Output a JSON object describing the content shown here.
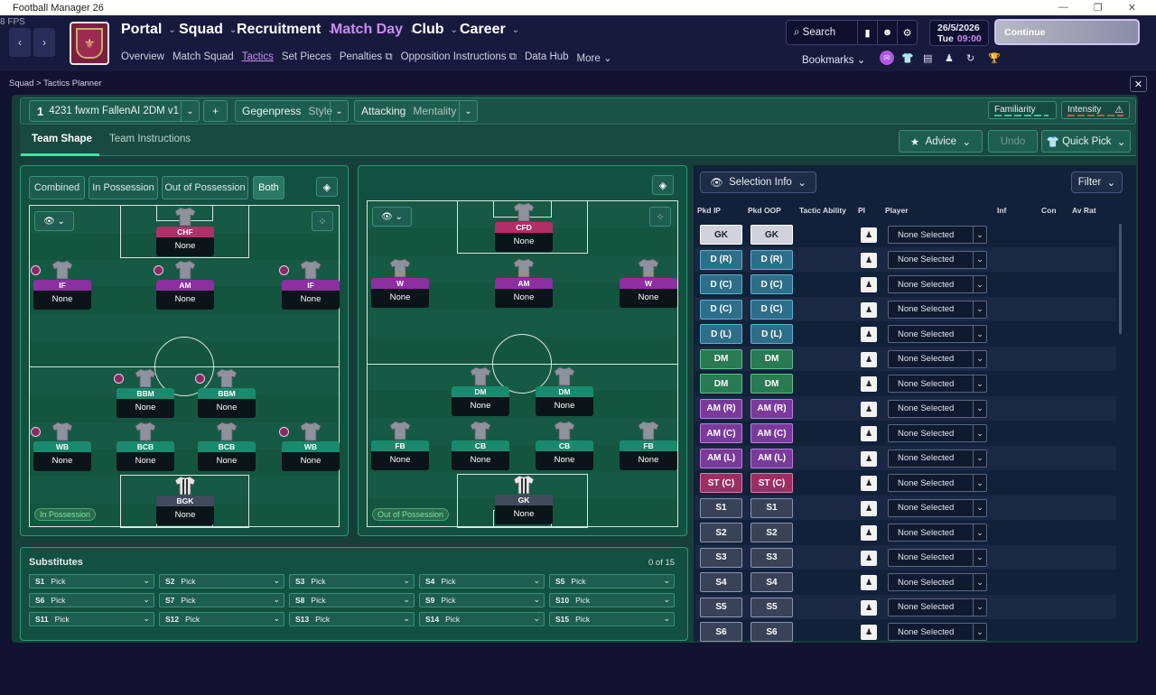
{
  "window": {
    "title": "Football Manager 26",
    "fps": "8 FPS",
    "controls": [
      "—",
      "❐",
      "✕"
    ]
  },
  "topnav": {
    "back": "‹",
    "forward": "›",
    "main": [
      {
        "label": "Portal",
        "highlight": false
      },
      {
        "label": "Squad",
        "highlight": false
      },
      {
        "label": "Recruitment",
        "highlight": false
      },
      {
        "label": "Match Day",
        "highlight": true
      },
      {
        "label": "Club",
        "highlight": false
      },
      {
        "label": "Career",
        "highlight": false
      }
    ],
    "sub": [
      "Overview",
      "Match Squad",
      "Tactics",
      "Set Pieces",
      "Penalties ⧉",
      "Opposition Instructions ⧉",
      "Data Hub",
      "More ⌄"
    ],
    "search": "Search",
    "date": "26/5/2026",
    "day": "Tue",
    "time": "09:00",
    "continue": "Continue",
    "bookmarks": "Bookmarks"
  },
  "breadcrumb": "Squad > Tactics Planner",
  "tactic": {
    "slot": "1",
    "name": "4231 fwxm FallenAI 2DM v1",
    "add": "+",
    "style_value": "Gegenpress",
    "style_label": "Style",
    "mentality_value": "Attacking",
    "mentality_label": "Mentality",
    "familiarity": "Familiarity",
    "intensity": "Intensity"
  },
  "tabs": {
    "shape": "Team Shape",
    "instructions": "Team Instructions"
  },
  "actions": {
    "advice": "Advice",
    "undo": "Undo",
    "quick_pick": "Quick Pick"
  },
  "view_modes": [
    "Combined",
    "In Possession",
    "Out of Possession",
    "Both"
  ],
  "in_possession": {
    "label": "In Possession",
    "players": [
      {
        "role": "CHF",
        "name": "None",
        "type": "str"
      },
      {
        "role": "IF",
        "name": "None",
        "type": "att"
      },
      {
        "role": "AM",
        "name": "None",
        "type": "att"
      },
      {
        "role": "IF",
        "name": "None",
        "type": "att"
      },
      {
        "role": "BBM",
        "name": "None",
        "type": "def"
      },
      {
        "role": "BBM",
        "name": "None",
        "type": "def"
      },
      {
        "role": "WB",
        "name": "None",
        "type": "def"
      },
      {
        "role": "BCB",
        "name": "None",
        "type": "def"
      },
      {
        "role": "BCB",
        "name": "None",
        "type": "def"
      },
      {
        "role": "WB",
        "name": "None",
        "type": "def"
      },
      {
        "role": "BGK",
        "name": "None",
        "type": "gk"
      }
    ]
  },
  "out_of_possession": {
    "label": "Out of Possession",
    "players": [
      {
        "role": "CFD",
        "name": "None",
        "type": "str"
      },
      {
        "role": "W",
        "name": "None",
        "type": "att"
      },
      {
        "role": "AM",
        "name": "None",
        "type": "att"
      },
      {
        "role": "W",
        "name": "None",
        "type": "att"
      },
      {
        "role": "DM",
        "name": "None",
        "type": "def"
      },
      {
        "role": "DM",
        "name": "None",
        "type": "def"
      },
      {
        "role": "FB",
        "name": "None",
        "type": "def"
      },
      {
        "role": "CB",
        "name": "None",
        "type": "def"
      },
      {
        "role": "CB",
        "name": "None",
        "type": "def"
      },
      {
        "role": "FB",
        "name": "None",
        "type": "def"
      },
      {
        "role": "GK",
        "name": "None",
        "type": "gk"
      }
    ]
  },
  "substitutes": {
    "title": "Substitutes",
    "count": "0 of 15",
    "slots": [
      {
        "slot": "S1",
        "value": "Pick"
      },
      {
        "slot": "S2",
        "value": "Pick"
      },
      {
        "slot": "S3",
        "value": "Pick"
      },
      {
        "slot": "S4",
        "value": "Pick"
      },
      {
        "slot": "S5",
        "value": "Pick"
      },
      {
        "slot": "S6",
        "value": "Pick"
      },
      {
        "slot": "S7",
        "value": "Pick"
      },
      {
        "slot": "S8",
        "value": "Pick"
      },
      {
        "slot": "S9",
        "value": "Pick"
      },
      {
        "slot": "S10",
        "value": "Pick"
      },
      {
        "slot": "S11",
        "value": "Pick"
      },
      {
        "slot": "S12",
        "value": "Pick"
      },
      {
        "slot": "S13",
        "value": "Pick"
      },
      {
        "slot": "S14",
        "value": "Pick"
      },
      {
        "slot": "S15",
        "value": "Pick"
      }
    ]
  },
  "selection": {
    "info_label": "Selection Info",
    "filter_label": "Filter",
    "columns": [
      "Pkd IP",
      "Pkd OOP",
      "Tactic Ability",
      "PI",
      "Player",
      "Inf",
      "Con",
      "Av Rat"
    ],
    "rows": [
      {
        "ip": "GK",
        "oop": "GK",
        "kind": "gk",
        "player": "None Selected"
      },
      {
        "ip": "D (R)",
        "oop": "D (R)",
        "kind": "d",
        "player": "None Selected"
      },
      {
        "ip": "D (C)",
        "oop": "D (C)",
        "kind": "d",
        "player": "None Selected"
      },
      {
        "ip": "D (C)",
        "oop": "D (C)",
        "kind": "d",
        "player": "None Selected"
      },
      {
        "ip": "D (L)",
        "oop": "D (L)",
        "kind": "d",
        "player": "None Selected"
      },
      {
        "ip": "DM",
        "oop": "DM",
        "kind": "dm",
        "player": "None Selected"
      },
      {
        "ip": "DM",
        "oop": "DM",
        "kind": "dm",
        "player": "None Selected"
      },
      {
        "ip": "AM (R)",
        "oop": "AM (R)",
        "kind": "am",
        "player": "None Selected"
      },
      {
        "ip": "AM (C)",
        "oop": "AM (C)",
        "kind": "am",
        "player": "None Selected"
      },
      {
        "ip": "AM (L)",
        "oop": "AM (L)",
        "kind": "am",
        "player": "None Selected"
      },
      {
        "ip": "ST (C)",
        "oop": "ST (C)",
        "kind": "st",
        "player": "None Selected"
      },
      {
        "ip": "S1",
        "oop": "S1",
        "kind": "s",
        "player": "None Selected"
      },
      {
        "ip": "S2",
        "oop": "S2",
        "kind": "s",
        "player": "None Selected"
      },
      {
        "ip": "S3",
        "oop": "S3",
        "kind": "s",
        "player": "None Selected"
      },
      {
        "ip": "S4",
        "oop": "S4",
        "kind": "s",
        "player": "None Selected"
      },
      {
        "ip": "S5",
        "oop": "S5",
        "kind": "s",
        "player": "None Selected"
      },
      {
        "ip": "S6",
        "oop": "S6",
        "kind": "s",
        "player": "None Selected"
      }
    ]
  },
  "icons": {
    "search": "⌕",
    "eye": "👁",
    "dropdown": "⌄",
    "chevron": "›",
    "close": "✕"
  },
  "colors": {
    "accent_purple": "#c98cf2",
    "pitch_green": "#165944",
    "tab_underline": "#3fe0a2",
    "attack_role": "#8b2fa1",
    "defence_role": "#1a8a6e"
  }
}
